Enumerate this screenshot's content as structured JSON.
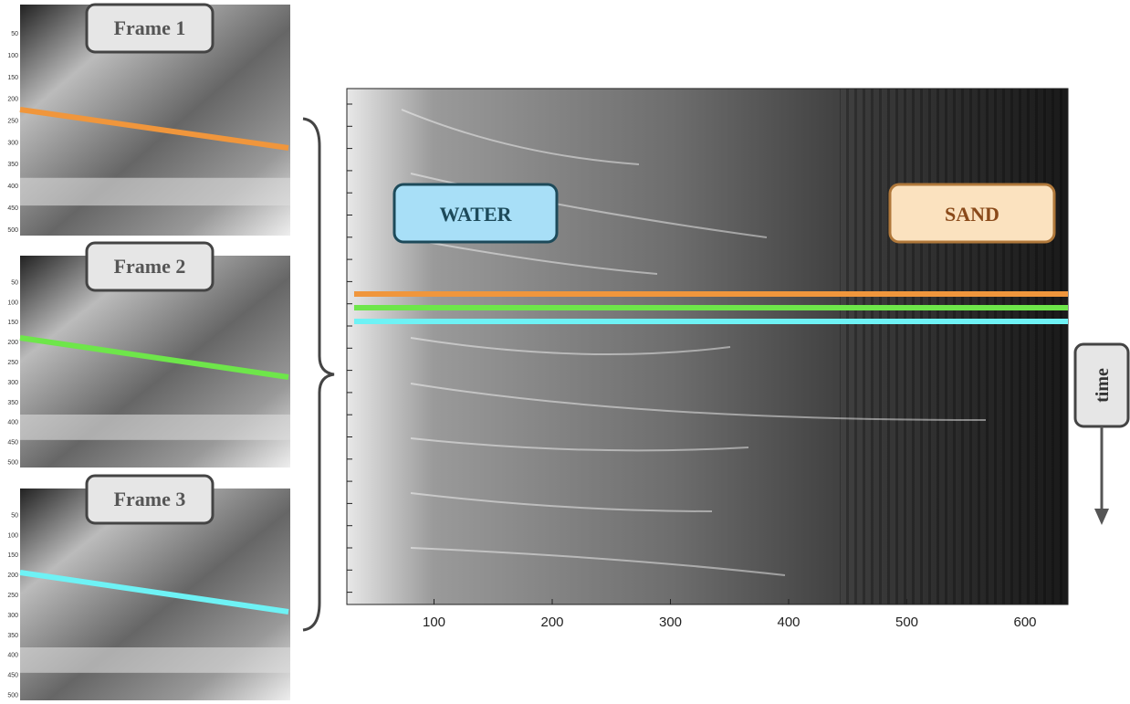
{
  "frames": [
    {
      "label": "Frame 1"
    },
    {
      "label": "Frame 2"
    },
    {
      "label": "Frame 3"
    }
  ],
  "frame_yticks": [
    50,
    100,
    150,
    200,
    250,
    300,
    350,
    400,
    450,
    500
  ],
  "labels": {
    "water": "WATER",
    "sand": "SAND",
    "time": "time"
  },
  "xticks": [
    100,
    200,
    300,
    400,
    500,
    600
  ]
}
